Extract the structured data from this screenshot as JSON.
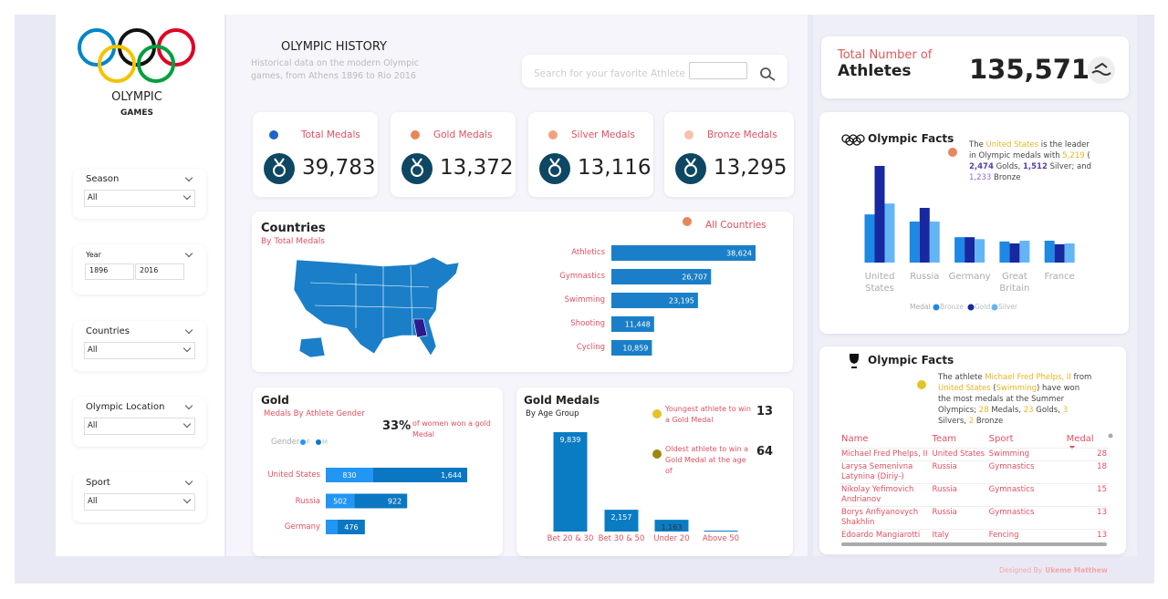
{
  "sidebar": {
    "logo_title": "OLYMPIC",
    "logo_subtitle": "GAMES",
    "filters": [
      {
        "label": "Season",
        "value": "All"
      },
      {
        "label": "Year",
        "from": "1896",
        "to": "2016"
      },
      {
        "label": "Countries",
        "value": "All"
      },
      {
        "label": "Olympic Location",
        "value": "All"
      },
      {
        "label": "Sport",
        "value": "All"
      }
    ]
  },
  "header": {
    "title": "OLYMPIC HISTORY",
    "subtitle": "Historical data on the modern Olympic games, from Athens 1896 to Rio 2016",
    "search_placeholder": "Search for your favorite Athlete"
  },
  "athletes": {
    "label_top": "Total Number of",
    "label_main": "Athletes",
    "value": "135,571"
  },
  "kpis": [
    {
      "label": "Total Medals",
      "value": "39,783",
      "color": "#1f63c4"
    },
    {
      "label": "Gold Medals",
      "value": "13,372",
      "color": "#e8865a"
    },
    {
      "label": "Silver Medals",
      "value": "13,116",
      "color": "#f0a27f"
    },
    {
      "label": "Bronze Medals",
      "value": "13,295",
      "color": "#f6c1ab"
    }
  ],
  "chart_data": [
    {
      "type": "bar",
      "orientation": "horizontal",
      "title": "Countries",
      "subtitle": "By Total Medals",
      "legend": "All Countries",
      "legend_color": "#e8865a",
      "color": "#1a7fc8",
      "categories": [
        "Athletics",
        "Gymnastics",
        "Swimming",
        "Shooting",
        "Cycling"
      ],
      "values": [
        38624,
        26707,
        23195,
        11448,
        10859
      ],
      "value_labels": [
        "38,624",
        "26,707",
        "23,195",
        "11,448",
        "10,859"
      ]
    },
    {
      "type": "grouped_bar",
      "legend_title": "Medal",
      "categories": [
        "United States",
        "Russia",
        "Germany",
        "Great Britain",
        "France"
      ],
      "series": [
        {
          "name": "Bronze",
          "color": "#1e88e5",
          "values": [
            1233,
            1050,
            650,
            540,
            560
          ]
        },
        {
          "name": "Gold",
          "color": "#1728a0",
          "values": [
            2474,
            1400,
            650,
            490,
            470
          ]
        },
        {
          "name": "Silver",
          "color": "#64b5f6",
          "values": [
            1512,
            1050,
            600,
            560,
            490
          ]
        }
      ]
    },
    {
      "type": "stacked_bar",
      "orientation": "horizontal",
      "title": "Gold",
      "subtitle": "Medals By Athlete Gender",
      "legend_title": "Gender",
      "stat": "33%",
      "stat_text": "of women won a gold Medal",
      "categories": [
        "United States",
        "Russia",
        "Germany"
      ],
      "series": [
        {
          "name": "F",
          "color": "#2196f3",
          "values": [
            830,
            502,
            208
          ],
          "value_labels": [
            "830",
            "502",
            null
          ]
        },
        {
          "name": "M",
          "color": "#0b77c2",
          "values": [
            1644,
            922,
            476
          ],
          "value_labels": [
            "1,644",
            "922",
            "476"
          ]
        }
      ]
    },
    {
      "type": "bar",
      "title": "Gold Medals",
      "subtitle": "By Age Group",
      "color": "#0a7cc4",
      "categories": [
        "Bet 20 & 30",
        "Bet 30 & 50",
        "Under 20",
        "Above 50"
      ],
      "values": [
        9839,
        2157,
        1163,
        90
      ],
      "value_labels": [
        "9,839",
        "2,157",
        "1,163",
        null
      ],
      "annotations": [
        {
          "text": "Youngest athlete to win a Gold Medal",
          "value": 13,
          "color": "#e6c229"
        },
        {
          "text": "Oldest athlete to win a Gold Medal at the age of",
          "value": 64,
          "color": "#9a8a10"
        }
      ]
    }
  ],
  "facts": [
    {
      "title": "Olympic Facts",
      "dot_color": "#e8865a",
      "parts": [
        {
          "text": "The ",
          "color": "#444"
        },
        {
          "text": "United States",
          "color": "#e6b422"
        },
        {
          "text": "  is the leader in Olympic medals with ",
          "color": "#444"
        },
        {
          "text": "5,219",
          "color": "#e6b422"
        },
        {
          "text": " ( ",
          "color": "#444"
        },
        {
          "text": "2,474",
          "color": "#5b3da8",
          "bold": true
        },
        {
          "text": " Golds, ",
          "color": "#444"
        },
        {
          "text": "1,512",
          "color": "#5b3da8",
          "bold": true
        },
        {
          "text": " Silver; and ",
          "color": "#444"
        },
        {
          "text": "1,233",
          "color": "#8c6bd6"
        },
        {
          "text": " Bronze",
          "color": "#444"
        }
      ]
    },
    {
      "title": "Olympic Facts",
      "dot_color": "#e6c229",
      "parts": [
        {
          "text": "The athlete ",
          "color": "#444"
        },
        {
          "text": "Michael Fred Phelps, II",
          "color": "#e6b422"
        },
        {
          "text": " from ",
          "color": "#444"
        },
        {
          "text": "United States",
          "color": "#e6b422"
        },
        {
          "text": " (",
          "color": "#444"
        },
        {
          "text": "Swimming",
          "color": "#e6b422"
        },
        {
          "text": ") have won the most medals at the Summer Olympics; ",
          "color": "#444"
        },
        {
          "text": "28",
          "color": "#e6b422"
        },
        {
          "text": " Medals, ",
          "color": "#444"
        },
        {
          "text": "23",
          "color": "#e6b422"
        },
        {
          "text": " Golds, ",
          "color": "#444"
        },
        {
          "text": "3",
          "color": "#e6b422"
        },
        {
          "text": " Silvers, ",
          "color": "#444"
        },
        {
          "text": "2",
          "color": "#e6b422"
        },
        {
          "text": " Bronze",
          "color": "#444"
        }
      ]
    }
  ],
  "table": {
    "columns": [
      "Name",
      "Team",
      "Sport",
      "Medal"
    ],
    "rows": [
      [
        "Michael Fred Phelps, II",
        "United States",
        "Swimming",
        "28"
      ],
      [
        "Larysa Semenivna Latynina (Diriy-)",
        "Russia",
        "Gymnastics",
        "18"
      ],
      [
        "Nikolay Yefimovich Andrianov",
        "Russia",
        "Gymnastics",
        "15"
      ],
      [
        "Borys Anfiyanovych Shakhlin",
        "Russia",
        "Gymnastics",
        "13"
      ],
      [
        "Edoardo Mangiarotti",
        "Italy",
        "Fencing",
        "13"
      ]
    ]
  },
  "footer": {
    "prefix": "Designed By",
    "author": "Ukeme Matthew"
  }
}
